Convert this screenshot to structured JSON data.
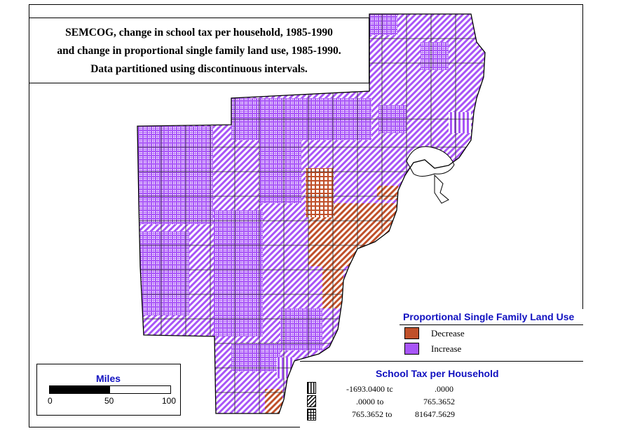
{
  "title": {
    "line1": "SEMCOG, change in school tax per household, 1985-1990",
    "line2": "and change in proportional single family land use, 1985-1990.",
    "line3": "Data partitioned using discontinuous intervals."
  },
  "legend_land_use": {
    "title": "Proportional Single Family Land Use",
    "items": [
      {
        "label": "Decrease",
        "color": "#c0502a"
      },
      {
        "label": "Increase",
        "color": "#a855f7"
      }
    ]
  },
  "legend_school_tax": {
    "title": "School Tax per Household",
    "rows": [
      {
        "from": "-1693.0400 tc",
        "to": ".0000",
        "pattern": "vertical-lines"
      },
      {
        "from": ".0000 to",
        "to": "765.3652",
        "pattern": "diagonal-lines"
      },
      {
        "from": "765.3652 to",
        "to": "81647.5629",
        "pattern": "crosshatch"
      }
    ]
  },
  "scale_bar": {
    "title": "Miles",
    "ticks": [
      "0",
      "50",
      "100"
    ]
  },
  "colors": {
    "increase": "#a855f7",
    "decrease": "#c0502a",
    "legend_title": "#1010c0"
  }
}
